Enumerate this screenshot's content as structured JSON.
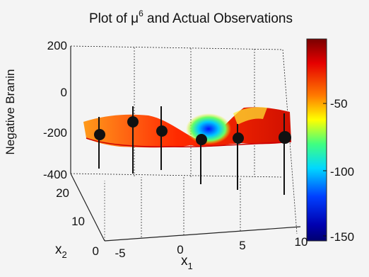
{
  "chart_data": {
    "type": "surface",
    "title": {
      "prefix": "Plot of ",
      "symbol": "μ",
      "superscript": "6",
      "suffix": " and Actual Observations"
    },
    "zlabel": "Negative Branin",
    "xlabel": {
      "base": "x",
      "sub": "1"
    },
    "ylabel": {
      "base": "x",
      "sub": "2"
    },
    "z_ticks": [
      "200",
      "0",
      "-200",
      "-400"
    ],
    "z_tick_values": [
      200,
      0,
      -200,
      -400
    ],
    "zlim": [
      -400,
      200
    ],
    "x_ticks": [
      "-5",
      "0",
      "5",
      "10"
    ],
    "x_tick_values": [
      -5,
      0,
      5,
      10
    ],
    "xlim": [
      -5,
      10
    ],
    "y_ticks": [
      "20",
      "10",
      "0"
    ],
    "y_tick_values": [
      20,
      10,
      0
    ],
    "ylim": [
      0,
      20
    ],
    "colorbar": {
      "ticks": [
        "-50",
        "-100",
        "-150"
      ],
      "tick_values": [
        -50,
        -100,
        -150
      ],
      "range": [
        -170,
        0
      ],
      "colormap": "jet"
    },
    "observations": [
      {
        "x1": -4.2,
        "x2": 1.5,
        "z": -200
      },
      {
        "x1": -2.3,
        "x2": 3.5,
        "z": -130
      },
      {
        "x1": 0.0,
        "x2": 2.5,
        "z": -170
      },
      {
        "x1": 2.3,
        "x2": 2.0,
        "z": -215
      },
      {
        "x1": 5.4,
        "x2": 2.0,
        "z": -210
      },
      {
        "x1": 8.8,
        "x2": 3.0,
        "z": -205
      }
    ]
  }
}
